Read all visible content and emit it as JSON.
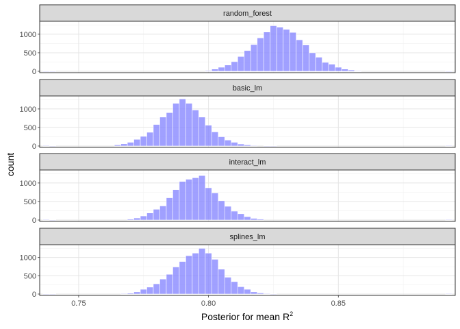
{
  "chart_data": {
    "type": "bar",
    "subtype": "faceted-histogram",
    "xlabel": "Posterior for mean R",
    "xlabel_superscript": "2",
    "ylabel": "count",
    "xlim": [
      0.735,
      0.895
    ],
    "ylim": [
      0,
      1350
    ],
    "x_ticks": [
      "0.75",
      "0.80",
      "0.85"
    ],
    "y_ticks": [
      "0",
      "500",
      "1000"
    ],
    "bin_width": 0.0025,
    "bar_fill": "#8080ff",
    "bar_outline": "#ffffff",
    "strip_fill": "#d9d9d9",
    "grid": true,
    "theme": "bw",
    "facets": [
      {
        "name": "random_forest",
        "x": [
          0.7375,
          0.74,
          0.8,
          0.8025,
          0.805,
          0.8075,
          0.81,
          0.8125,
          0.815,
          0.8175,
          0.82,
          0.8225,
          0.825,
          0.8275,
          0.83,
          0.8325,
          0.835,
          0.8375,
          0.84,
          0.8425,
          0.845,
          0.8475,
          0.85,
          0.8525,
          0.855,
          0.8575,
          0.8925
        ],
        "values": [
          5,
          5,
          20,
          60,
          110,
          170,
          260,
          400,
          560,
          720,
          900,
          1060,
          1230,
          1190,
          1130,
          1050,
          850,
          710,
          500,
          380,
          240,
          190,
          110,
          60,
          35,
          10,
          5
        ]
      },
      {
        "name": "basic_lm",
        "x": [
          0.7375,
          0.74,
          0.765,
          0.7675,
          0.77,
          0.7725,
          0.775,
          0.7775,
          0.78,
          0.7825,
          0.785,
          0.7875,
          0.79,
          0.7925,
          0.795,
          0.7975,
          0.8,
          0.8025,
          0.805,
          0.8075,
          0.81,
          0.8125,
          0.815,
          0.8175,
          0.8225,
          0.825,
          0.8925
        ],
        "values": [
          10,
          5,
          30,
          60,
          100,
          180,
          260,
          370,
          580,
          780,
          900,
          1150,
          1270,
          1150,
          970,
          780,
          560,
          380,
          250,
          160,
          100,
          55,
          30,
          15,
          5,
          5,
          10
        ]
      },
      {
        "name": "interact_lm",
        "x": [
          0.7375,
          0.74,
          0.77,
          0.7725,
          0.775,
          0.7775,
          0.78,
          0.7825,
          0.785,
          0.7875,
          0.79,
          0.7925,
          0.795,
          0.7975,
          0.8,
          0.8025,
          0.805,
          0.8075,
          0.81,
          0.8125,
          0.815,
          0.8175,
          0.82,
          0.8925
        ],
        "values": [
          10,
          5,
          25,
          55,
          110,
          190,
          290,
          380,
          600,
          820,
          1040,
          1100,
          1140,
          1200,
          870,
          730,
          520,
          370,
          240,
          170,
          90,
          45,
          25,
          10
        ]
      },
      {
        "name": "splines_lm",
        "x": [
          0.7375,
          0.74,
          0.7675,
          0.77,
          0.7725,
          0.775,
          0.7775,
          0.78,
          0.7825,
          0.785,
          0.7875,
          0.79,
          0.7925,
          0.795,
          0.7975,
          0.8,
          0.8025,
          0.805,
          0.8075,
          0.81,
          0.8125,
          0.815,
          0.8175,
          0.82,
          0.8225,
          0.825,
          0.8925
        ],
        "values": [
          5,
          5,
          10,
          25,
          60,
          130,
          190,
          280,
          410,
          540,
          740,
          890,
          1050,
          1120,
          1250,
          1120,
          950,
          680,
          460,
          340,
          200,
          130,
          60,
          30,
          10,
          5,
          10
        ]
      }
    ]
  }
}
